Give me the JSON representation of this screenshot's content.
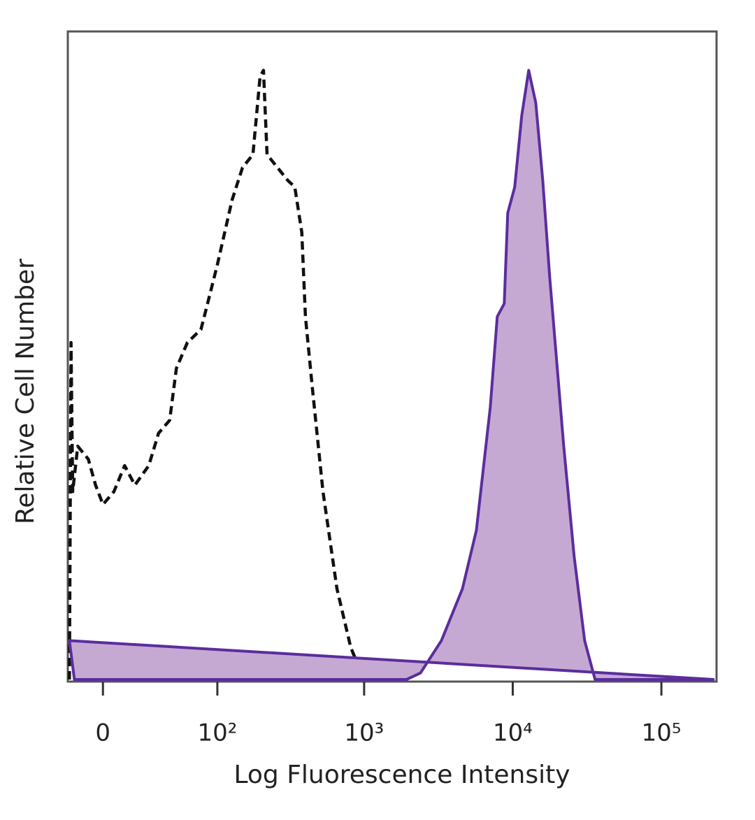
{
  "chart_data": {
    "type": "histogram-overlay",
    "x_label": "Log Fluorescence Intensity",
    "y_label": "Relative Cell Number",
    "x_scale": "biexponential",
    "xlim": [
      -20,
      235000
    ],
    "xticks": [
      0,
      {
        "value": 100,
        "label": "10²"
      },
      {
        "value": 1000,
        "label": "10³"
      },
      {
        "value": 10000,
        "label": "10⁴"
      },
      {
        "value": 100000,
        "label": "10⁵"
      }
    ],
    "ylim": [
      0,
      100
    ],
    "series": [
      {
        "color": "#111111",
        "dashed": true,
        "filled": false,
        "x": [
          -19,
          -18,
          -17,
          -14,
          -8,
          -4,
          0,
          6,
          12,
          18,
          27,
          34,
          43,
          49,
          60,
          76,
          85,
          100,
          127,
          150,
          177,
          198,
          209,
          221,
          260,
          306,
          341,
          380,
          402,
          448,
          528,
          656,
          812,
          955,
          1064
        ],
        "values": [
          0,
          52,
          29,
          36,
          34,
          30,
          27,
          29,
          33,
          30,
          33,
          38,
          40,
          48,
          52,
          54,
          58,
          64,
          74,
          79,
          81,
          93,
          94,
          81,
          79,
          77,
          76,
          69,
          56,
          45,
          29,
          14,
          5,
          1,
          0
        ]
      },
      {
        "color": "#5b2d9e",
        "fill": "#c6a9d2",
        "dashed": false,
        "filled": true,
        "x": [
          -19,
          -16,
          1929,
          2394,
          3311,
          4585,
          5690,
          7060,
          7864,
          8768,
          9254,
          10311,
          11494,
          12810,
          14280,
          15911,
          17731,
          19761,
          22029,
          25893,
          30436,
          35770,
          44450,
          223230
        ],
        "values": [
          6,
          0,
          0,
          1,
          6,
          14,
          23,
          42,
          56,
          58,
          72,
          76,
          87,
          94,
          89,
          77,
          62,
          49,
          36,
          19,
          6,
          0,
          0,
          0
        ]
      }
    ]
  }
}
